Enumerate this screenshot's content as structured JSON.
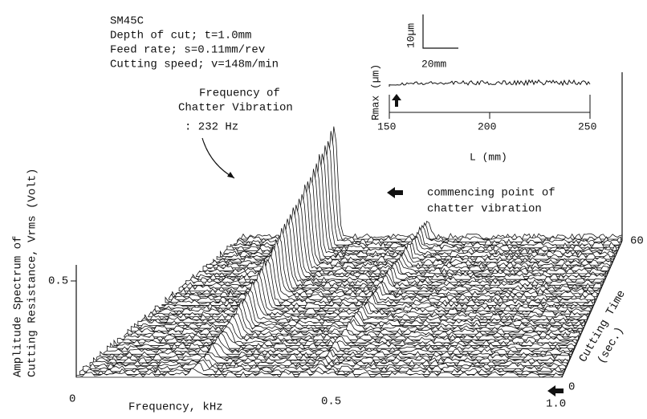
{
  "header": {
    "material": "SM45C",
    "lines": [
      "Depth of cut; t=1.0mm",
      "Feed rate; s=0.11mm/rev",
      "Cutting speed; v=148m/min"
    ]
  },
  "annotation": {
    "lines": [
      "Frequency of",
      "Chatter Vibration",
      ": 232 Hz"
    ]
  },
  "y_axis": {
    "lines": [
      "Amplitude Spectrum of",
      "Cutting Resistance, Vrms (Volt)"
    ],
    "tick": "0.5"
  },
  "x_axis": {
    "label": "Frequency,  kHz",
    "ticks": [
      "0",
      "0.5",
      "1.0"
    ]
  },
  "time_axis": {
    "lines": [
      "Cutting Time",
      "(sec.)"
    ],
    "ticks": [
      "0",
      "60"
    ]
  },
  "note": {
    "lines": [
      "commencing point of",
      "chatter vibration"
    ]
  },
  "inset": {
    "vscale": "10µm",
    "hscale": "20mm",
    "y_label": "Rmax (µm)",
    "ticks": [
      "150",
      "200",
      "250"
    ],
    "x_label": "L (mm)"
  }
}
